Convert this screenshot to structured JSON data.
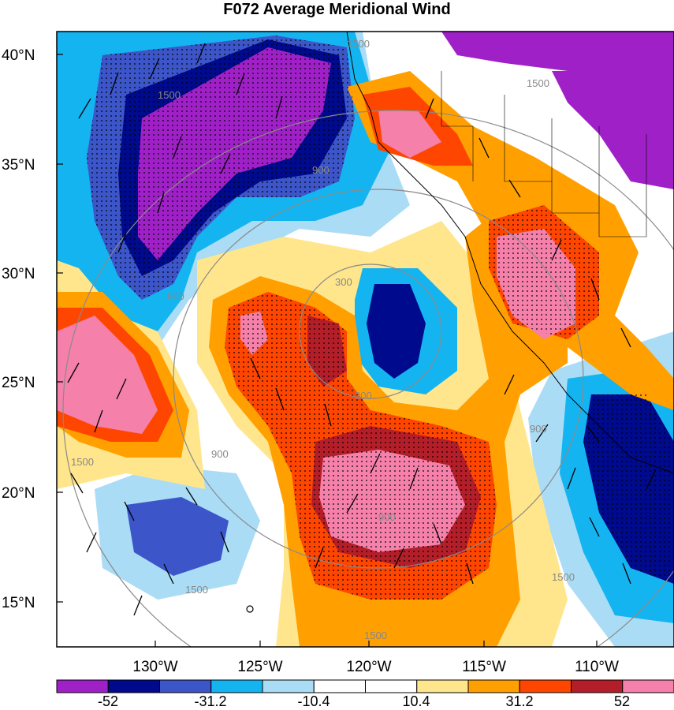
{
  "title": "F072 Average Meridional Wind",
  "map": {
    "lat_labels": [
      "40°N",
      "35°N",
      "30°N",
      "25°N",
      "20°N",
      "15°N"
    ],
    "lon_labels": [
      "130°W",
      "125°W",
      "120°W",
      "115°W",
      "110°W"
    ],
    "contour_labels": [
      "300",
      "300",
      "900",
      "900",
      "900",
      "900",
      "900",
      "1500",
      "1500",
      "1500",
      "1500",
      "1500",
      "1500",
      "1500"
    ]
  },
  "colorbar": {
    "labels": [
      "-52",
      "-31.2",
      "-10.4",
      "10.4",
      "31.2",
      "52"
    ],
    "colors": [
      "#a020c8",
      "#000a8c",
      "#3c55c8",
      "#14b4f0",
      "#aadcf5",
      "#ffffff",
      "#ffffff",
      "#ffe68c",
      "#ffa000",
      "#ff4600",
      "#b41e28",
      "#f580aa"
    ]
  }
}
